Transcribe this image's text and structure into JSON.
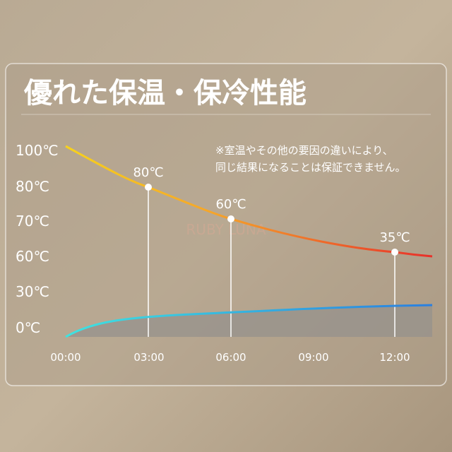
{
  "title": "優れた保温・保冷性能",
  "note": [
    "※室温やその他の要因の違いにより、",
    "同じ結果になることは保証できません。"
  ],
  "watermark": "RUBY LUNA",
  "y_labels": [
    "100℃",
    "80℃",
    "70℃",
    "60℃",
    "30℃",
    "0℃"
  ],
  "x_labels": [
    "00:00",
    "03:00",
    "06:00",
    "09:00",
    "12:00"
  ],
  "point_labels": [
    "80℃",
    "60℃",
    "35℃"
  ]
}
